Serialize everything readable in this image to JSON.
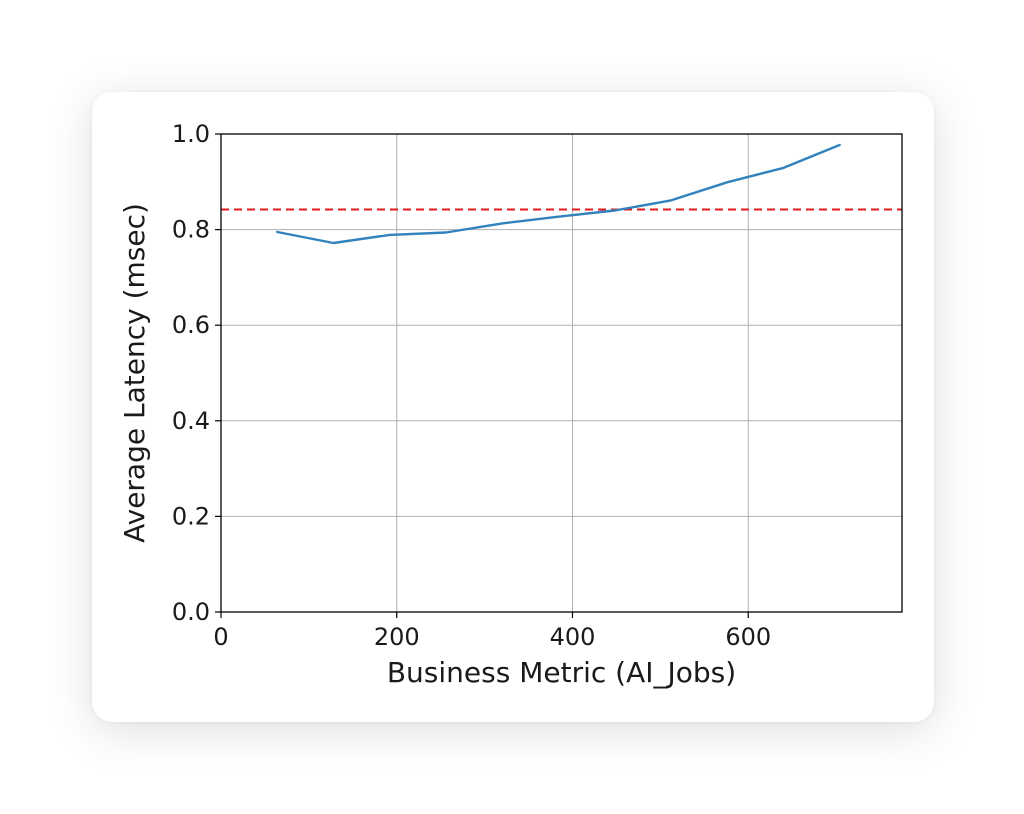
{
  "chart_data": {
    "type": "line",
    "xlabel": "Business Metric (AI_Jobs)",
    "ylabel": "Average Latency (msec)",
    "xlim": [
      0,
      775
    ],
    "ylim": [
      0.0,
      1.0
    ],
    "xticks": [
      0,
      200,
      400,
      600
    ],
    "yticks": [
      0.0,
      0.2,
      0.4,
      0.6,
      0.8,
      1.0
    ],
    "xtick_labels": [
      "0",
      "200",
      "400",
      "600"
    ],
    "ytick_labels": [
      "0.0",
      "0.2",
      "0.4",
      "0.6",
      "0.8",
      "1.0"
    ],
    "grid": true,
    "series": [
      {
        "color": "#3182bd",
        "x": [
          64,
          128,
          192,
          256,
          320,
          384,
          448,
          512,
          576,
          640,
          704
        ],
        "y": [
          0.795,
          0.772,
          0.789,
          0.794,
          0.813,
          0.827,
          0.84,
          0.861,
          0.899,
          0.929,
          0.977
        ]
      }
    ],
    "threshold": {
      "y": 0.842,
      "color": "#e31a1c",
      "style": "dashed"
    }
  }
}
